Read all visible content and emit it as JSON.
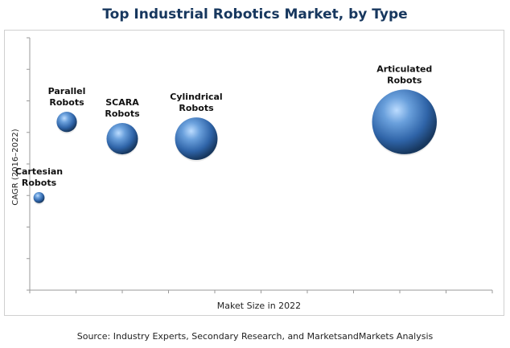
{
  "title": "Top Industrial Robotics Market, by Type",
  "source": "Source: Industry Experts, Secondary Research, and MarketsandMarkets Analysis",
  "chart_data": {
    "type": "bubble",
    "xlabel": "Maket Size in 2022",
    "ylabel": "CAGR (2016–2022)",
    "xlim": [
      0,
      10
    ],
    "ylim": [
      0,
      9
    ],
    "grid": false,
    "legend": "none",
    "bubble_color": "#3b6fb6",
    "points": [
      {
        "label": [
          "Cartesian",
          "Robots"
        ],
        "x": 0.2,
        "y": 3.3,
        "size": 0.6
      },
      {
        "label": [
          "Parallel",
          "Robots"
        ],
        "x": 0.8,
        "y": 6.0,
        "size": 1.1
      },
      {
        "label": [
          "SCARA",
          "Robots"
        ],
        "x": 2.0,
        "y": 5.4,
        "size": 1.7
      },
      {
        "label": [
          "Cylindrical",
          "Robots"
        ],
        "x": 3.6,
        "y": 5.4,
        "size": 2.3
      },
      {
        "label": [
          "Articulated",
          "Robots"
        ],
        "x": 8.1,
        "y": 6.0,
        "size": 3.5
      }
    ]
  }
}
